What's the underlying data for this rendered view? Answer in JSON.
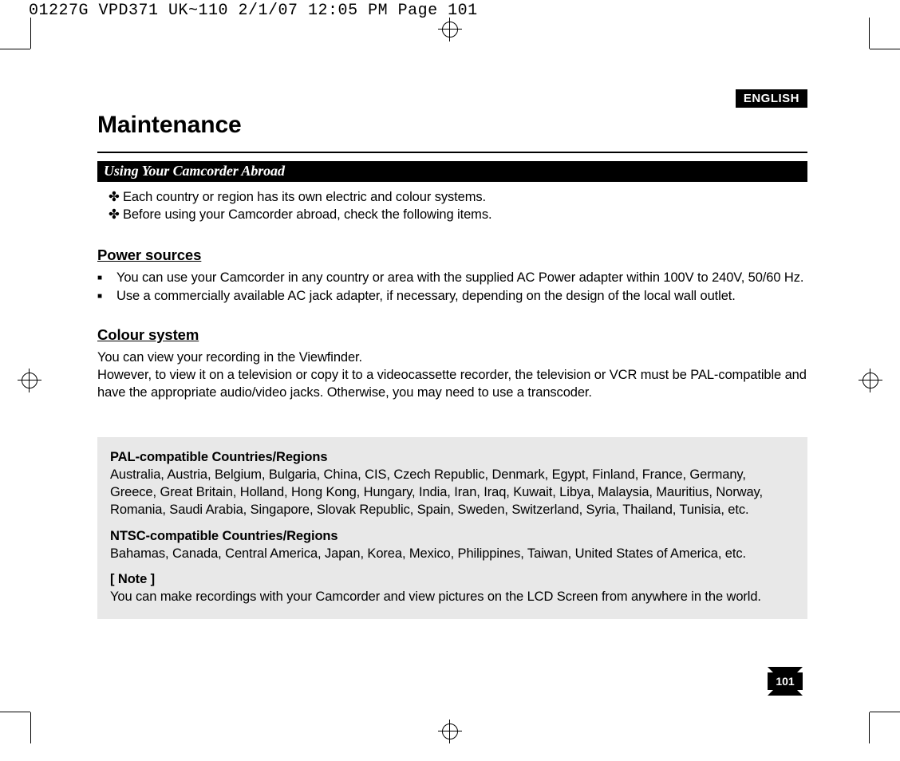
{
  "prepress": {
    "text": "01227G VPD371 UK~110  2/1/07 12:05 PM  Page 101"
  },
  "language_tag": "ENGLISH",
  "page_title": "Maintenance",
  "section_bar": "Using Your Camcorder Abroad",
  "intro_bullets": [
    "Each country or region has its own electric and colour systems.",
    "Before using your Camcorder abroad, check the following items."
  ],
  "power_sources": {
    "heading": "Power sources",
    "items": [
      "You can use your Camcorder in any country or area with the supplied AC Power adapter within 100V to 240V, 50/60 Hz.",
      "Use a commercially available AC jack adapter, if necessary, depending on the design of the local wall outlet."
    ]
  },
  "colour_system": {
    "heading": "Colour system",
    "paragraph": "You can view your recording in the Viewfinder.\nHowever, to view it on a television or copy it to a videocassette recorder, the television or VCR must be PAL-compatible and have the appropriate audio/video jacks. Otherwise, you may need to use a transcoder."
  },
  "infobox": {
    "pal_heading": "PAL-compatible Countries/Regions",
    "pal_body": "Australia, Austria, Belgium, Bulgaria, China, CIS, Czech Republic, Denmark, Egypt, Finland, France, Germany, Greece, Great Britain, Holland, Hong Kong, Hungary, India, Iran, Iraq, Kuwait, Libya, Malaysia, Mauritius, Norway, Romania, Saudi Arabia, Singapore, Slovak Republic, Spain, Sweden, Switzerland, Syria, Thailand, Tunisia, etc.",
    "ntsc_heading": "NTSC-compatible Countries/Regions",
    "ntsc_body": "Bahamas, Canada, Central America, Japan, Korea, Mexico, Philippines, Taiwan, United States of America, etc.",
    "note_heading": "[ Note ]",
    "note_body": "You can make recordings with your Camcorder and view pictures on the LCD Screen from anywhere in the world."
  },
  "page_number": "101",
  "colors": {
    "page_bg": "#ffffff",
    "text": "#000000",
    "infobox_bg": "#e8e8e8",
    "bar_bg": "#000000",
    "bar_fg": "#ffffff"
  },
  "typography": {
    "title_fontsize_pt": 22,
    "body_fontsize_pt": 12,
    "section_bar_fontfamily": "serif-italic-bold"
  },
  "bullets": {
    "flower": "✤",
    "square": "■"
  }
}
